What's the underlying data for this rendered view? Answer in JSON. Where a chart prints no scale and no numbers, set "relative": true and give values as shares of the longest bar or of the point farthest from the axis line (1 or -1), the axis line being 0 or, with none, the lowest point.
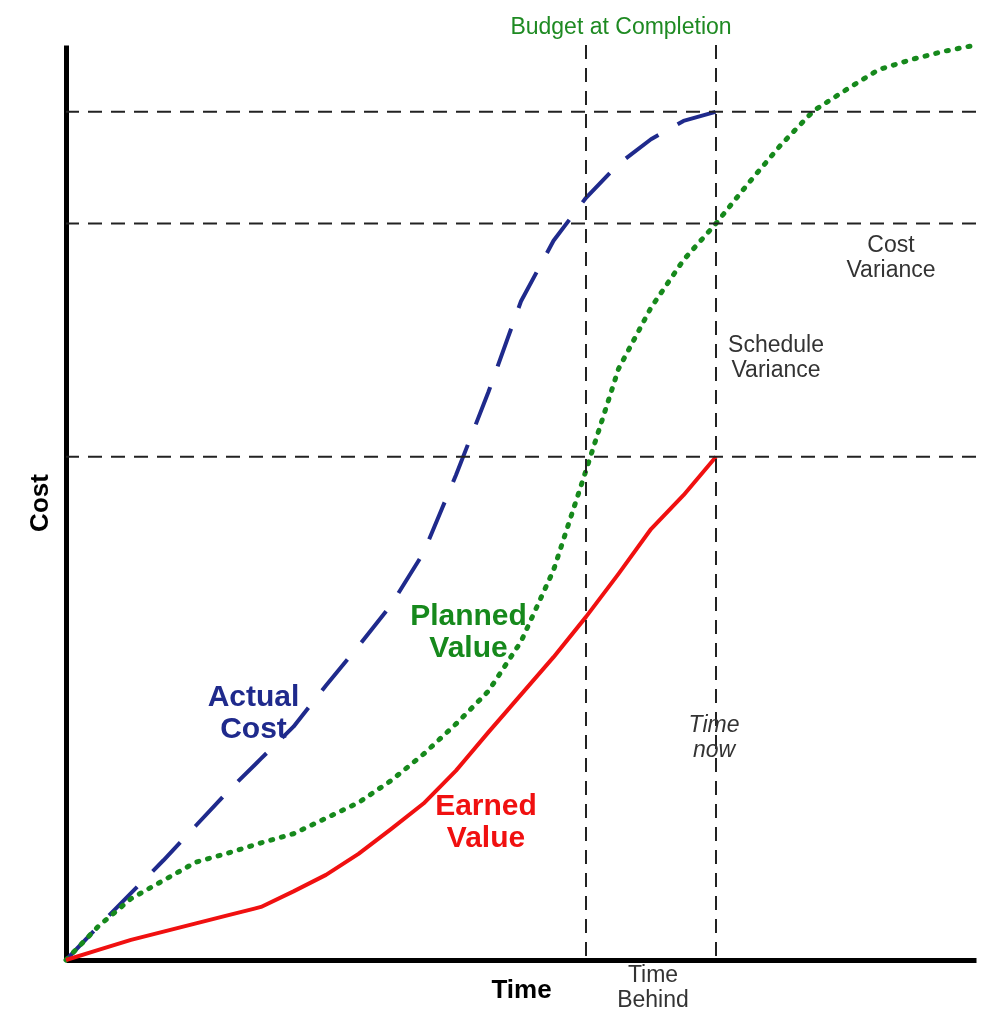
{
  "chart_data": {
    "type": "line",
    "relative": true,
    "xlabel": "Time",
    "ylabel": "Cost",
    "grid": false,
    "marker": "none",
    "categories": [
      null,
      null,
      null,
      null,
      null,
      null,
      null,
      null,
      null,
      null,
      null,
      null,
      null,
      null,
      null,
      null,
      null,
      null,
      null,
      null,
      null,
      null,
      null,
      null,
      null,
      null,
      null,
      null,
      null
    ],
    "series": [
      {
        "name": "Actual Cost",
        "color": "#1f2a8c",
        "line_style": "dashed",
        "values": [
          0,
          0.037,
          0.073,
          0.109,
          0.147,
          0.185,
          0.22,
          0.255,
          0.3,
          0.343,
          0.388,
          0.445,
          0.53,
          0.621,
          0.72,
          0.786,
          0.833,
          0.87,
          0.897,
          0.917,
          0.927,
          null,
          null,
          null,
          null,
          null,
          null,
          null,
          null
        ]
      },
      {
        "name": "Planned Value",
        "color": "#16891c",
        "line_style": "dotted",
        "values": [
          0,
          0.037,
          0.067,
          0.087,
          0.107,
          0.117,
          0.128,
          0.138,
          0.155,
          0.172,
          0.196,
          0.225,
          0.258,
          0.294,
          0.348,
          0.426,
          0.535,
          0.646,
          0.713,
          0.765,
          0.805,
          0.849,
          0.891,
          0.928,
          0.951,
          0.973,
          0.984,
          0.993,
          1
        ]
      },
      {
        "name": "Earned Value",
        "color": "#f01010",
        "line_style": "solid",
        "values": [
          0,
          0.011,
          0.022,
          0.031,
          0.04,
          0.049,
          0.058,
          0.075,
          0.093,
          0.116,
          0.143,
          0.171,
          0.207,
          0.249,
          0.29,
          0.331,
          0.375,
          0.422,
          0.471,
          0.508,
          0.55,
          null,
          null,
          null,
          null,
          null,
          null,
          null,
          null
        ]
      }
    ],
    "ref_lines": [
      {
        "axis": "y",
        "value": 0.927,
        "label": null
      },
      {
        "axis": "y",
        "value": 0.805,
        "label": null
      },
      {
        "axis": "y",
        "value": 0.55,
        "label": null
      }
    ],
    "annotations": [
      "Budget at Completion",
      "Time Behind",
      "Cost Variance",
      "Schedule Variance",
      "Time now"
    ]
  }
}
